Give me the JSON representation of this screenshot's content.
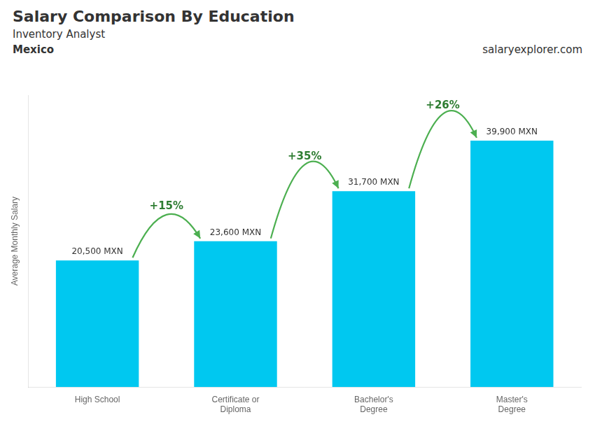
{
  "chart_data": {
    "type": "bar",
    "title": "Salary Comparison By Education",
    "subtitle": "Inventory Analyst",
    "ylabel": "Average Monthly Salary",
    "categories": [
      "High School",
      "Certificate or\nDiploma",
      "Bachelor's\nDegree",
      "Master's\nDegree"
    ],
    "values": [
      20500,
      23600,
      31700,
      39900
    ],
    "value_labels": [
      "20,500 MXN",
      "23,600 MXN",
      "31,700 MXN",
      "39,900 MXN"
    ],
    "data_labels": true,
    "color": "#00c8f0",
    "ylim": [
      0,
      47250
    ],
    "grid": false,
    "tick_labels": "x",
    "annotations": [
      {
        "text": "Mexico"
      },
      {
        "text": "salaryexplorer.com"
      },
      {
        "text": "+15%",
        "from": 0,
        "to": 1
      },
      {
        "text": "+35%",
        "from": 1,
        "to": 2
      },
      {
        "text": "+26%",
        "from": 2,
        "to": 3
      }
    ]
  }
}
